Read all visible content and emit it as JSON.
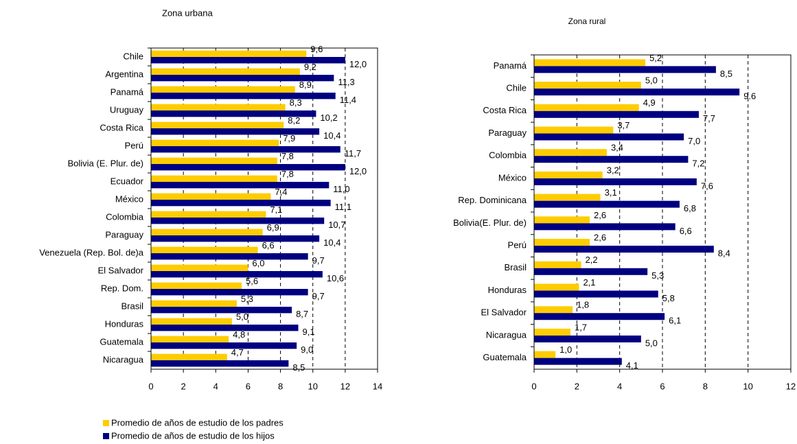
{
  "chart_data": [
    {
      "type": "barh",
      "title": "Zona urbana",
      "categories": [
        "Chile",
        "Argentina",
        "Panamá",
        "Uruguay",
        "Costa Rica",
        "Perú",
        "Bolivia (E. Plur. de)",
        "Ecuador",
        "México",
        "Colombia",
        "Paraguay",
        "Venezuela (Rep. Bol. de)a",
        "El Salvador",
        "Rep. Dom.",
        "Brasil",
        "Honduras",
        "Guatemala",
        "Nicaragua"
      ],
      "series": [
        {
          "name": "Promedio de años de estudio de los padres",
          "color": "#ffcc00",
          "values": [
            9.6,
            9.2,
            8.9,
            8.3,
            8.2,
            7.9,
            7.8,
            7.8,
            7.4,
            7.1,
            6.9,
            6.6,
            6.0,
            5.6,
            5.3,
            5.0,
            4.8,
            4.7
          ],
          "value_labels": [
            "9,6",
            "9,2",
            "8,9",
            "8,3",
            "8,2",
            "7,9",
            "7,8",
            "7,8",
            "7,4",
            "7,1",
            "6,9",
            "6,6",
            "6,0",
            "5,6",
            "5,3",
            "5,0",
            "4,8",
            "4,7"
          ]
        },
        {
          "name": "Promedio de años de estudio de los hijos",
          "color": "#000080",
          "values": [
            12.0,
            11.3,
            11.4,
            10.2,
            10.4,
            11.7,
            12.0,
            11.0,
            11.1,
            10.7,
            10.4,
            9.7,
            10.6,
            9.7,
            8.7,
            9.1,
            9.0,
            8.5
          ],
          "value_labels": [
            "12,0",
            "11,3",
            "11,4",
            "10,2",
            "10,4",
            "11,7",
            "12,0",
            "11,0",
            "11,1",
            "10,7",
            "10,4",
            "9,7",
            "10,6",
            "9,7",
            "8,7",
            "9,1",
            "9,0",
            "8,5"
          ]
        }
      ],
      "xlim": [
        0,
        14
      ],
      "xticks": [
        0,
        2,
        4,
        6,
        8,
        10,
        12,
        14
      ],
      "grid": true
    },
    {
      "type": "barh",
      "title": "Zona rural",
      "categories": [
        "Panamá",
        "Chile",
        "Costa Rica",
        "Paraguay",
        "Colombia",
        "México",
        "Rep. Dominicana",
        "Bolivia(E. Plur. de)",
        "Perú",
        "Brasil",
        "Honduras",
        "El Salvador",
        "Nicaragua",
        "Guatemala"
      ],
      "series": [
        {
          "color": "#ffcc00",
          "values": [
            5.2,
            5.0,
            4.9,
            3.7,
            3.4,
            3.2,
            3.1,
            2.6,
            2.6,
            2.2,
            2.1,
            1.8,
            1.7,
            1.0
          ],
          "value_labels": [
            "5,2",
            "5,0",
            "4,9",
            "3,7",
            "3,4",
            "3,2",
            "3,1",
            "2,6",
            "2,6",
            "2,2",
            "2,1",
            "1,8",
            "1,7",
            "1,0"
          ]
        },
        {
          "color": "#000080",
          "values": [
            8.5,
            9.6,
            7.7,
            7.0,
            7.2,
            7.6,
            6.8,
            6.6,
            8.4,
            5.3,
            5.8,
            6.1,
            5.0,
            4.1
          ],
          "value_labels": [
            "8,5",
            "9.6",
            "7,7",
            "7,0",
            "7,2",
            "7,6",
            "6,8",
            "6,6",
            "8,4",
            "5,3",
            "5,8",
            "6,1",
            "5,0",
            "4,1"
          ]
        }
      ],
      "xlim": [
        0,
        12
      ],
      "xticks": [
        0,
        2,
        4,
        6,
        8,
        10,
        12
      ],
      "grid": true
    }
  ]
}
